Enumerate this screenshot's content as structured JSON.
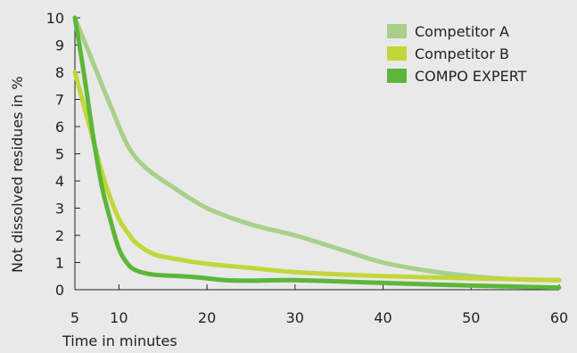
{
  "chart_data": {
    "type": "line",
    "title": "",
    "xlabel": "Time in minutes",
    "ylabel": "Not dissolved residues in %",
    "xlim": [
      5,
      60
    ],
    "ylim": [
      0,
      10
    ],
    "x_ticks": [
      "5",
      "10",
      "20",
      "30",
      "40",
      "50",
      "60"
    ],
    "y_ticks": [
      "0",
      "1",
      "2",
      "3",
      "4",
      "5",
      "6",
      "7",
      "8",
      "9",
      "10"
    ],
    "grid": false,
    "legend_position": "top-right",
    "series": [
      {
        "name": "Competitor A",
        "color": "#a8d08a",
        "x": [
          5,
          7,
          9,
          11,
          13,
          16,
          20,
          25,
          30,
          35,
          40,
          45,
          50,
          55,
          60
        ],
        "y": [
          10,
          8.4,
          6.8,
          5.3,
          4.5,
          3.8,
          3.0,
          2.4,
          2.0,
          1.5,
          1.0,
          0.7,
          0.5,
          0.38,
          0.35
        ]
      },
      {
        "name": "Competitor B",
        "color": "#c2d63a",
        "x": [
          5,
          6,
          7,
          8,
          9,
          10,
          11,
          12,
          14,
          17,
          20,
          25,
          30,
          40,
          50,
          60
        ],
        "y": [
          8,
          6.8,
          5.6,
          4.4,
          3.4,
          2.6,
          2.1,
          1.7,
          1.3,
          1.1,
          0.95,
          0.8,
          0.65,
          0.5,
          0.42,
          0.35
        ]
      },
      {
        "name": "COMPO EXPERT",
        "color": "#5cb63a",
        "x": [
          5,
          6,
          7,
          8,
          9,
          10,
          11,
          12,
          14,
          17,
          20,
          22,
          25,
          30,
          40,
          50,
          60
        ],
        "y": [
          10,
          8.0,
          5.8,
          3.9,
          2.6,
          1.5,
          0.95,
          0.7,
          0.55,
          0.5,
          0.42,
          0.35,
          0.33,
          0.35,
          0.25,
          0.15,
          0.08
        ]
      }
    ]
  }
}
